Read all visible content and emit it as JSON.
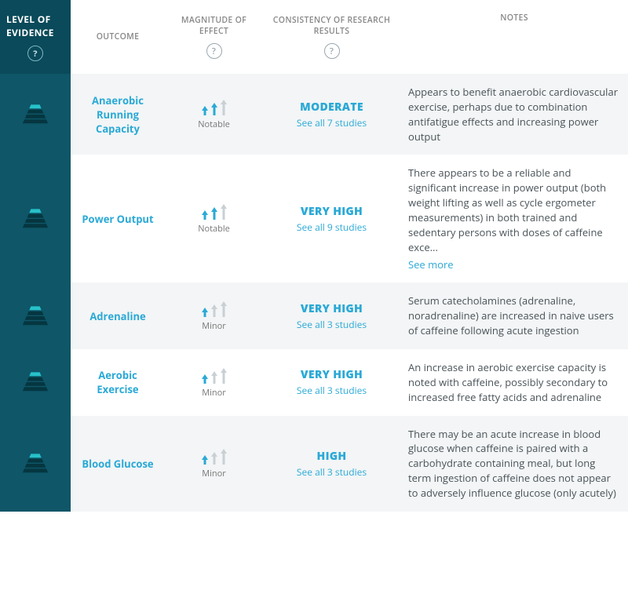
{
  "colors": {
    "evidence_bg": "#0e5668",
    "evidence_header_bg": "#0a4a5a",
    "alt_row_bg": "#f3f5f6",
    "link": "#2aa9d6",
    "text": "#4a5358",
    "muted": "#888888",
    "arrow_inactive": "#c9d0d4",
    "header_text": "#ffffff",
    "pyramid_top": "#27c1c9",
    "pyramid_dark": "#053640"
  },
  "headers": {
    "evidence": "LEVEL OF EVIDENCE",
    "outcome": "OUTCOME",
    "magnitude": "MAGNITUDE OF EFFECT",
    "consistency": "CONSISTENCY OF RESEARCH RESULTS",
    "notes": "NOTES"
  },
  "help_glyph": "?",
  "see_more_label": "See more",
  "rows": [
    {
      "evidence_level": 4,
      "outcome": "Anaerobic Running Capacity",
      "magnitude_level": 2,
      "magnitude_label": "Notable",
      "consistency": "MODERATE",
      "studies_link": "See all 7 studies",
      "notes": "Appears to benefit anaerobic cardiovascular exercise, perhaps due to combination antifatigue effects and increasing power output",
      "see_more": false
    },
    {
      "evidence_level": 4,
      "outcome": "Power Output",
      "magnitude_level": 2,
      "magnitude_label": "Notable",
      "consistency": "VERY HIGH",
      "studies_link": "See all 9 studies",
      "notes": "There appears to be a reliable and significant increase in power output (both weight lifting as well as cycle ergometer measurements) in both trained and sedentary persons with doses of caffeine exce...",
      "see_more": true
    },
    {
      "evidence_level": 4,
      "outcome": "Adrenaline",
      "magnitude_level": 1,
      "magnitude_label": "Minor",
      "consistency": "VERY HIGH",
      "studies_link": "See all 3 studies",
      "notes": "Serum catecholamines (adrenaline, noradrenaline) are increased in naive users of caffeine following acute ingestion",
      "see_more": false
    },
    {
      "evidence_level": 4,
      "outcome": "Aerobic Exercise",
      "magnitude_level": 1,
      "magnitude_label": "Minor",
      "consistency": "VERY HIGH",
      "studies_link": "See all 3 studies",
      "notes": "An increase in aerobic exercise capacity is noted with caffeine, possibly secondary to increased free fatty acids and adrenaline",
      "see_more": false
    },
    {
      "evidence_level": 4,
      "outcome": "Blood Glucose",
      "magnitude_level": 1,
      "magnitude_label": "Minor",
      "consistency": "HIGH",
      "studies_link": "See all 3 studies",
      "notes": "There may be an acute increase in blood glucose when caffeine is paired with a carbohydrate containing meal, but long term ingestion of caffeine does not appear to adversely influence glucose (only acutely)",
      "see_more": false
    }
  ]
}
